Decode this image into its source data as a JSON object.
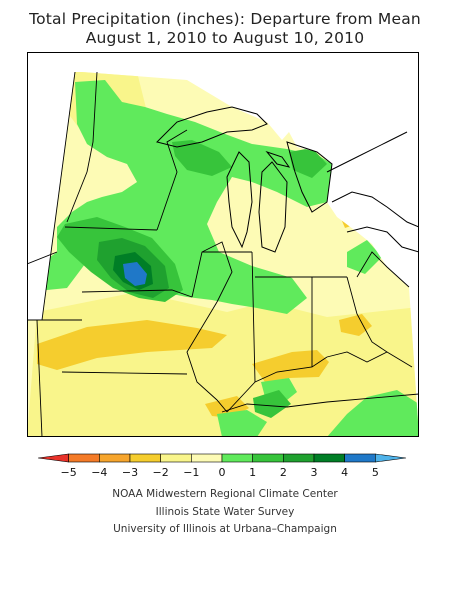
{
  "header": {
    "title_line1": "Total Precipitation (inches): Departure from Mean",
    "title_line2": "August 1, 2010 to August 10, 2010"
  },
  "legend": {
    "ticks": [
      "−5",
      "−4",
      "−3",
      "−2",
      "−1",
      "0",
      "1",
      "2",
      "3",
      "4",
      "5"
    ],
    "colors": [
      "#e8322a",
      "#f47b28",
      "#f6a52d",
      "#f5cd2e",
      "#f9f58b",
      "#fdfbb5",
      "#60ea5c",
      "#37c43b",
      "#1fa12f",
      "#007e26",
      "#1f78c8",
      "#4fb3ea"
    ]
  },
  "map_colors": {
    "background": "#fdfbb5",
    "dry_light": "#f9f58b",
    "dry": "#f5cd2e",
    "wet_1": "#60ea5c",
    "wet_2": "#37c43b",
    "wet_3": "#1fa12f",
    "wet_4": "#007e26",
    "wet_5": "#1f78c8"
  },
  "credits": {
    "line1": "NOAA Midwestern Regional Climate Center",
    "line2": "Illinois State Water Survey",
    "line3": "University of Illinois at Urbana–Champaign"
  }
}
